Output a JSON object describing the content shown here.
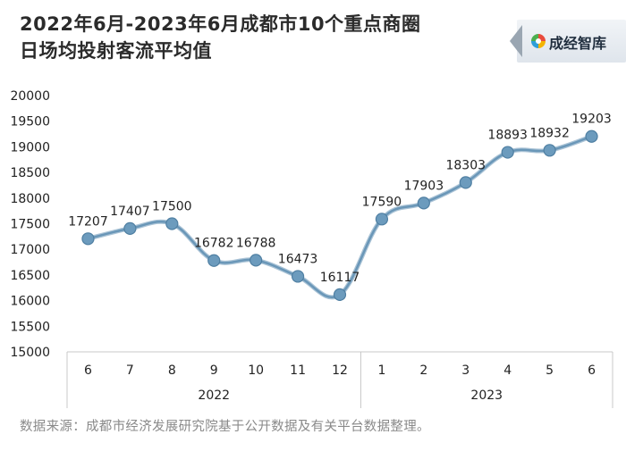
{
  "title_lines": [
    "2022年6月-2023年6月成都市10个重点商圈",
    "日场均投射客流平均值"
  ],
  "logo": {
    "text": "成经智库",
    "icon": "colorful-circle-logo-icon"
  },
  "source": "数据来源：成都市经济发展研究院基于公开数据及有关平台数据整理。",
  "colors": {
    "line": "#6a97b8",
    "marker_fill": "#6c9bbd",
    "marker_stroke": "#4f7fa2",
    "axis": "#c8c8c8",
    "text": "#222222"
  },
  "chart_data": {
    "type": "line",
    "title": "2022年6月-2023年6月成都市10个重点商圈日场均投射客流平均值",
    "categories": [
      "6",
      "7",
      "8",
      "9",
      "10",
      "11",
      "12",
      "1",
      "2",
      "3",
      "4",
      "5",
      "6"
    ],
    "groups": [
      {
        "label": "2022",
        "count": 7
      },
      {
        "label": "2023",
        "count": 6
      }
    ],
    "series": [
      {
        "values": [
          17207,
          17407,
          17500,
          16782,
          16788,
          16473,
          16117,
          17590,
          17903,
          18303,
          18893,
          18932,
          19203
        ]
      }
    ],
    "yticks": [
      15000,
      15500,
      16000,
      16500,
      17000,
      17500,
      18000,
      18500,
      19000,
      19500,
      20000
    ],
    "ylim": [
      15000,
      20000
    ],
    "data_labels": true,
    "smooth": true,
    "grid": false,
    "legend": "none"
  }
}
